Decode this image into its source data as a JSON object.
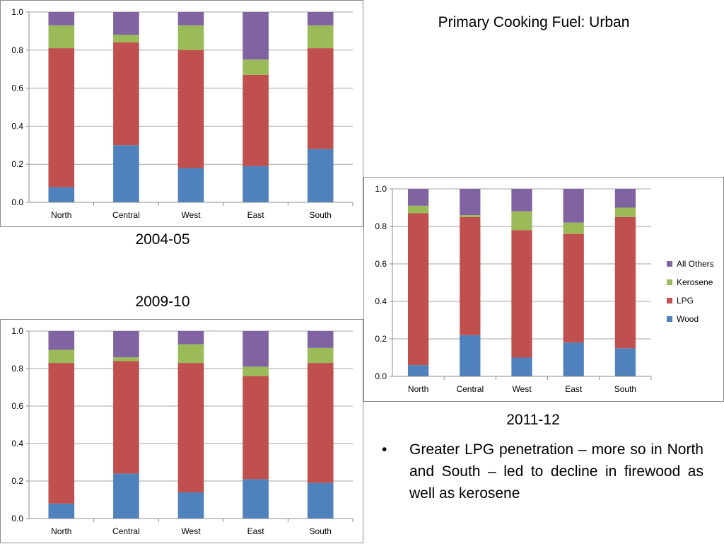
{
  "title": "Primary Cooking Fuel: Urban",
  "bullet": "Greater LPG penetration – more so in North and South – led to decline in firewood as well as kerosene",
  "bullet_symbol": "•",
  "colors": {
    "Wood": "#4f81bd",
    "LPG": "#c0504d",
    "Kerosene": "#9bbb59",
    "All Others": "#8064a2"
  },
  "legend": [
    "All Others",
    "Kerosene",
    "LPG",
    "Wood"
  ],
  "chart_data": [
    {
      "type": "bar",
      "stacked": true,
      "caption": "2004-05",
      "categories": [
        "North",
        "Central",
        "West",
        "East",
        "South"
      ],
      "yticks": [
        "0.0",
        "0.2",
        "0.4",
        "0.6",
        "0.8",
        "1.0"
      ],
      "ylim": [
        0,
        1
      ],
      "grid": true,
      "series": [
        {
          "name": "Wood",
          "values": [
            0.08,
            0.3,
            0.18,
            0.19,
            0.28
          ]
        },
        {
          "name": "LPG",
          "values": [
            0.73,
            0.54,
            0.62,
            0.48,
            0.53
          ]
        },
        {
          "name": "Kerosene",
          "values": [
            0.12,
            0.04,
            0.13,
            0.08,
            0.12
          ]
        },
        {
          "name": "All Others",
          "values": [
            0.07,
            0.12,
            0.07,
            0.25,
            0.07
          ]
        }
      ]
    },
    {
      "type": "bar",
      "stacked": true,
      "caption": "2009-10",
      "categories": [
        "North",
        "Central",
        "West",
        "East",
        "South"
      ],
      "yticks": [
        "0.0",
        "0.2",
        "0.4",
        "0.6",
        "0.8",
        "1.0"
      ],
      "ylim": [
        0,
        1
      ],
      "grid": true,
      "series": [
        {
          "name": "Wood",
          "values": [
            0.08,
            0.24,
            0.14,
            0.21,
            0.19
          ]
        },
        {
          "name": "LPG",
          "values": [
            0.75,
            0.6,
            0.69,
            0.55,
            0.64
          ]
        },
        {
          "name": "Kerosene",
          "values": [
            0.07,
            0.02,
            0.1,
            0.05,
            0.08
          ]
        },
        {
          "name": "All Others",
          "values": [
            0.1,
            0.14,
            0.07,
            0.19,
            0.09
          ]
        }
      ]
    },
    {
      "type": "bar",
      "stacked": true,
      "caption": "2011-12",
      "categories": [
        "North",
        "Central",
        "West",
        "East",
        "South"
      ],
      "yticks": [
        "0.0",
        "0.2",
        "0.4",
        "0.6",
        "0.8",
        "1.0"
      ],
      "ylim": [
        0,
        1
      ],
      "grid": true,
      "legend_position": "right",
      "series": [
        {
          "name": "Wood",
          "values": [
            0.06,
            0.22,
            0.1,
            0.18,
            0.15
          ]
        },
        {
          "name": "LPG",
          "values": [
            0.81,
            0.63,
            0.68,
            0.58,
            0.7
          ]
        },
        {
          "name": "Kerosene",
          "values": [
            0.04,
            0.01,
            0.1,
            0.06,
            0.05
          ]
        },
        {
          "name": "All Others",
          "values": [
            0.09,
            0.14,
            0.12,
            0.18,
            0.1
          ]
        }
      ]
    }
  ]
}
